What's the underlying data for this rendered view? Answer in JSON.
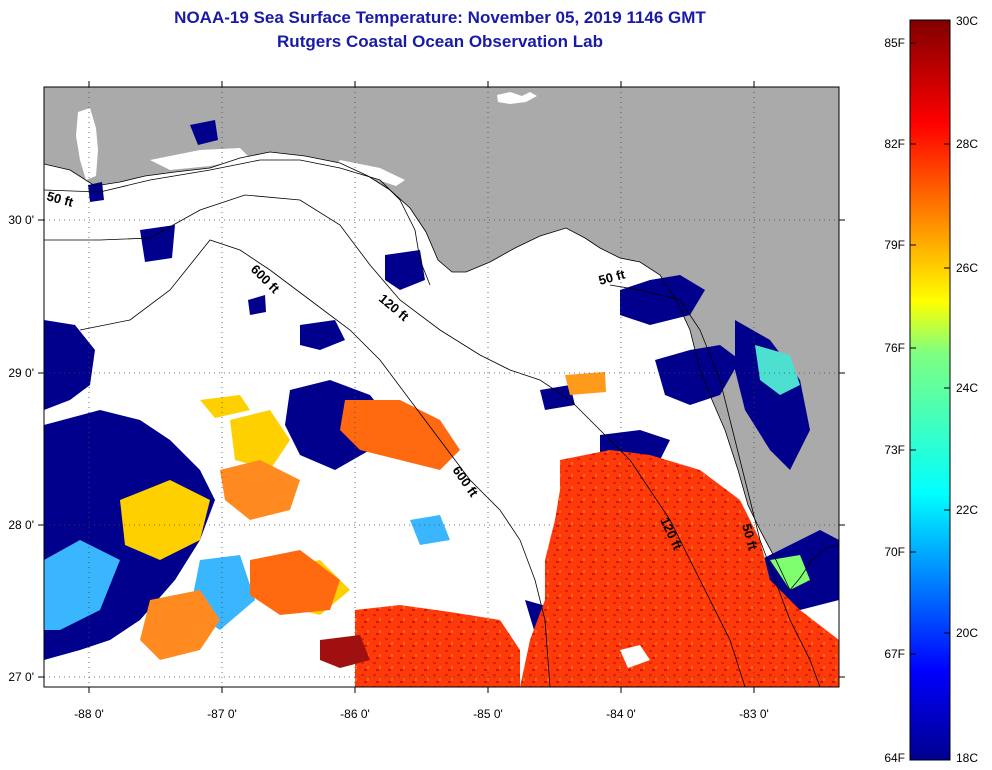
{
  "title": {
    "line1": "NOAA-19 Sea Surface Temperature:  November 05, 2019 1146 GMT",
    "line2": "Rutgers Coastal Ocean Observation Lab"
  },
  "map": {
    "lon_ticks": [
      "-88 0'",
      "-87 0'",
      "-86 0'",
      "-85 0'",
      "-84 0'",
      "-83 0'"
    ],
    "lat_ticks": [
      "30 0'",
      "29 0'",
      "28 0'",
      "27 0'"
    ],
    "contours": [
      "50 ft",
      "600 ft",
      "120 ft",
      "50 ft",
      "600 ft",
      "120 ft",
      "50 ft"
    ],
    "colors": {
      "land": "#aaaaaa",
      "cloud": "#ffffff",
      "cold": "#00008c",
      "warm": "#ff3a0a"
    }
  },
  "colorbar": {
    "fahrenheit": [
      "85F",
      "82F",
      "79F",
      "76F",
      "73F",
      "70F",
      "67F",
      "64F"
    ],
    "celsius": [
      "30C",
      "28C",
      "26C",
      "24C",
      "22C",
      "20C",
      "18C"
    ],
    "celsius_top": "30C",
    "celsius_bottom": "18C"
  }
}
